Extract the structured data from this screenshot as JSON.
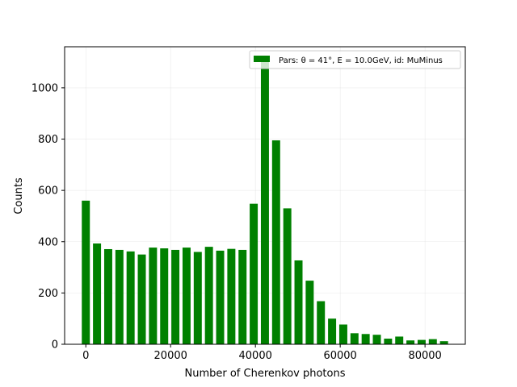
{
  "chart_data": {
    "type": "bar",
    "xlabel": "Number of Cherenkov photons",
    "ylabel": "Counts",
    "xlim": [
      -5000,
      89500
    ],
    "ylim": [
      0,
      1160
    ],
    "xticks": [
      0,
      20000,
      40000,
      60000,
      80000
    ],
    "yticks": [
      0,
      200,
      400,
      600,
      800,
      1000
    ],
    "bar_width": 1900,
    "bar_color": "#008000",
    "grid": true,
    "legend_position": "top-right",
    "series": [
      {
        "name": "Pars: θ = 41°, E = 10.0GeV, id: MuMinus",
        "x": [
          0,
          2640,
          5280,
          7920,
          10560,
          13200,
          15840,
          18480,
          21120,
          23760,
          26400,
          29040,
          31680,
          34320,
          36960,
          39600,
          42240,
          44880,
          47520,
          50160,
          52800,
          55440,
          58080,
          60720,
          63360,
          66000,
          68640,
          71280,
          73920,
          76560,
          79200,
          81840,
          84480
        ],
        "values": [
          560,
          393,
          371,
          368,
          362,
          350,
          377,
          374,
          368,
          377,
          360,
          380,
          365,
          372,
          368,
          548,
          1110,
          795,
          530,
          327,
          248,
          168,
          100,
          77,
          43,
          40,
          37,
          22,
          30,
          15,
          17,
          20,
          12
        ]
      }
    ]
  }
}
